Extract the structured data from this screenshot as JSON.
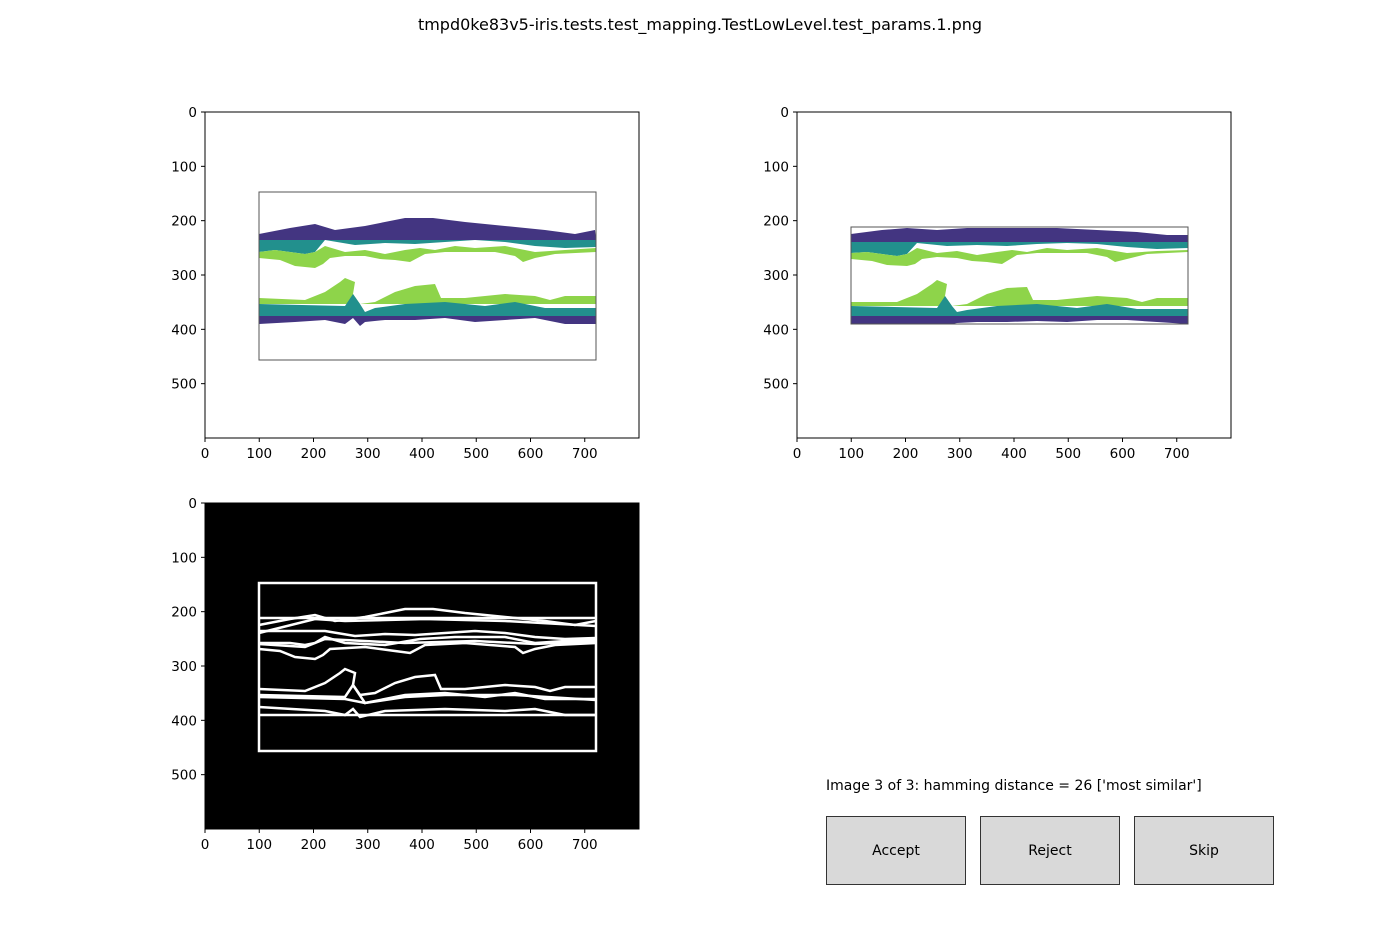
{
  "window": {
    "title": "tmpd0ke83v5-iris.tests.test_mapping.TestLowLevel.test_params.1.png"
  },
  "status": {
    "text": "Image 3 of 3: hamming distance = 26 ['most similar']"
  },
  "buttons": {
    "accept": "Accept",
    "reject": "Reject",
    "skip": "Skip"
  },
  "colors": {
    "dark_purple": "#433581",
    "teal": "#22908d",
    "light_green": "#8ed44a",
    "frame_gray": "#555555",
    "diff_background": "#000000",
    "diff_lines": "#ffffff",
    "button_face": "#d9d9d9"
  },
  "chart_data": [
    {
      "type": "image",
      "panel": "expected",
      "x_ticks": [
        0,
        100,
        200,
        300,
        400,
        500,
        600,
        700
      ],
      "y_ticks": [
        0,
        100,
        200,
        300,
        400,
        500
      ],
      "xlim": [
        0,
        800
      ],
      "ylim": [
        600,
        0
      ],
      "frame_box": {
        "x": [
          100,
          720
        ],
        "y": [
          148,
          458
        ]
      }
    },
    {
      "type": "image",
      "panel": "actual",
      "x_ticks": [
        0,
        100,
        200,
        300,
        400,
        500,
        600,
        700
      ],
      "y_ticks": [
        0,
        100,
        200,
        300,
        400,
        500
      ],
      "xlim": [
        0,
        800
      ],
      "ylim": [
        600,
        0
      ],
      "frame_box": {
        "x": [
          100,
          720
        ],
        "y": [
          212,
          392
        ]
      }
    },
    {
      "type": "image",
      "panel": "difference",
      "x_ticks": [
        0,
        100,
        200,
        300,
        400,
        500,
        600,
        700
      ],
      "y_ticks": [
        0,
        100,
        200,
        300,
        400,
        500
      ],
      "xlim": [
        0,
        800
      ],
      "ylim": [
        600,
        0
      ]
    }
  ]
}
